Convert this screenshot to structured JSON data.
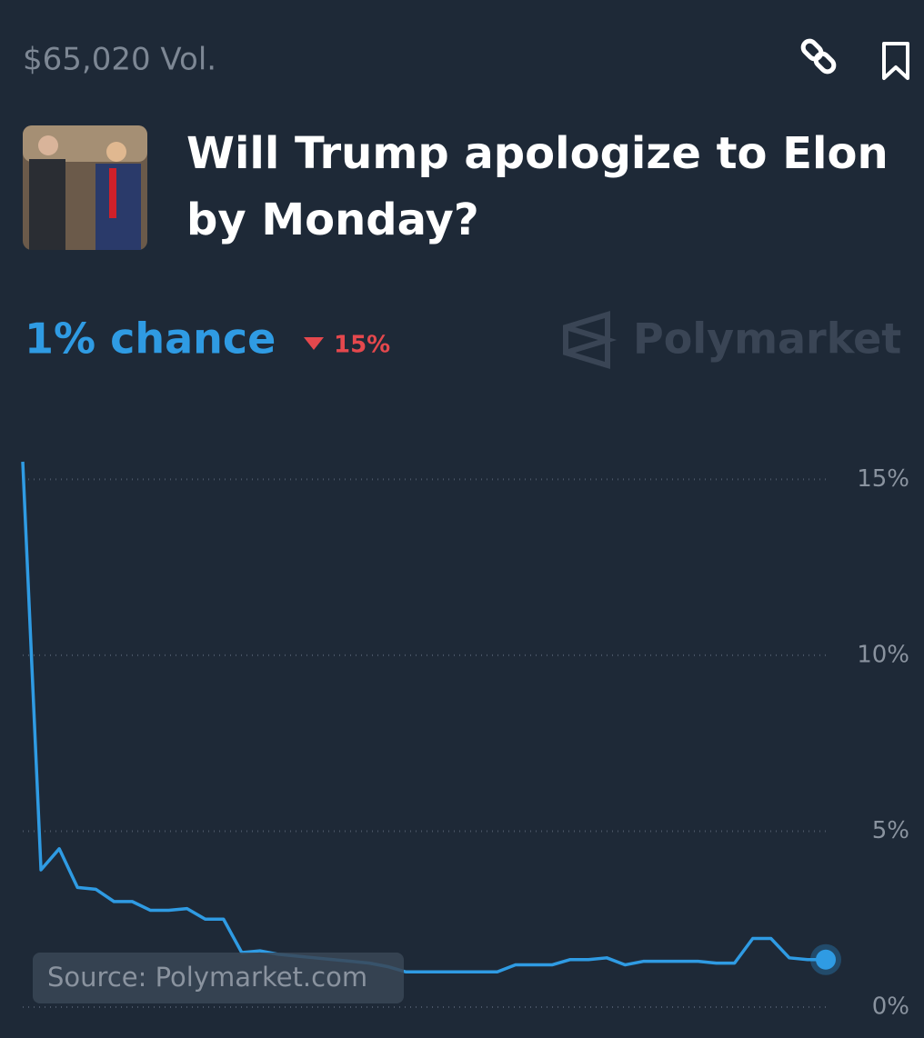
{
  "header": {
    "volume": "$65,020 Vol.",
    "title": "Will Trump apologize to Elon by Monday?",
    "chance": "1% chance",
    "change": "15%",
    "brand": "Polymarket"
  },
  "chart_data": {
    "type": "line",
    "color": "#2f9be3",
    "values": [
      15.5,
      3.9,
      4.5,
      3.4,
      3.35,
      3.0,
      3.0,
      2.75,
      2.75,
      2.8,
      2.5,
      2.5,
      1.55,
      1.6,
      1.5,
      1.45,
      1.4,
      1.35,
      1.3,
      1.25,
      1.15,
      1.0,
      1.0,
      1.0,
      1.0,
      1.0,
      1.0,
      1.2,
      1.2,
      1.2,
      1.35,
      1.35,
      1.4,
      1.2,
      1.3,
      1.3,
      1.3,
      1.3,
      1.25,
      1.25,
      1.95,
      1.95,
      1.4,
      1.35,
      1.35
    ],
    "ylim": [
      0,
      15.5
    ],
    "yticks": [
      {
        "value": 0,
        "label": "0%"
      },
      {
        "value": 5,
        "label": "5%"
      },
      {
        "value": 10,
        "label": "10%"
      },
      {
        "value": 15,
        "label": "15%"
      }
    ],
    "grid": true,
    "source": "Source: Polymarket.com"
  }
}
